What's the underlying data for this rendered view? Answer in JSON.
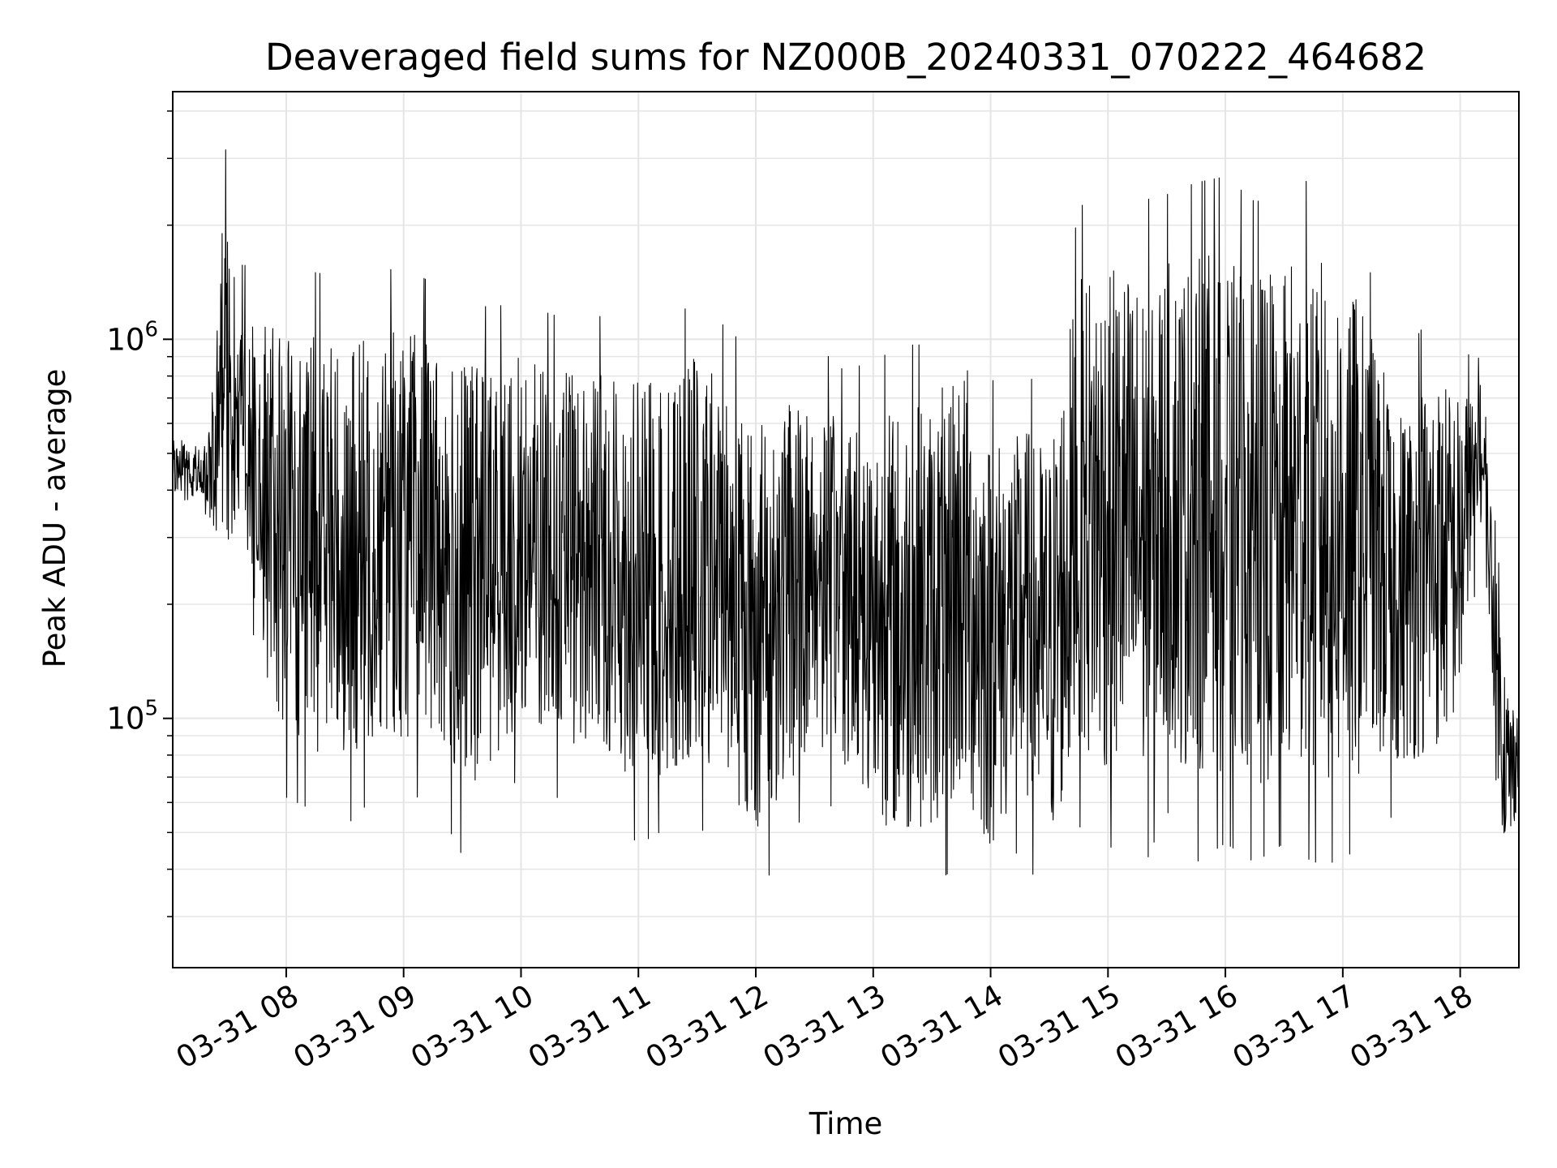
{
  "chart_data": {
    "type": "line",
    "title": "Deaveraged field sums for NZ000B_20240331_070222_464682",
    "xlabel": "Time",
    "ylabel": "Peak ADU - average",
    "yscale": "log",
    "ylim": [
      22000,
      4500000
    ],
    "xlim": [
      "03-31 07:02",
      "03-31 18:30"
    ],
    "grid": true,
    "legend": "none",
    "line_color": "#000000",
    "grid_color": "#e5e5e5",
    "x_ticks": [
      "03-31 08",
      "03-31 09",
      "03-31 10",
      "03-31 11",
      "03-31 12",
      "03-31 13",
      "03-31 14",
      "03-31 15",
      "03-31 16",
      "03-31 17",
      "03-31 18"
    ],
    "y_ticks": [
      {
        "base": "10",
        "exp": "5",
        "value": 100000
      },
      {
        "base": "10",
        "exp": "6",
        "value": 1000000
      }
    ],
    "series": [
      {
        "x": [
          "03-31 07:02",
          "03-31 07:10",
          "03-31 07:17",
          "03-31 07:25",
          "03-31 07:28",
          "03-31 07:35",
          "03-31 07:45",
          "03-31 08:00",
          "03-31 08:15",
          "03-31 08:30",
          "03-31 08:45",
          "03-31 09:00",
          "03-31 09:15",
          "03-31 09:30",
          "03-31 09:45",
          "03-31 10:00",
          "03-31 10:15",
          "03-31 10:30",
          "03-31 10:45",
          "03-31 11:00",
          "03-31 11:15",
          "03-31 11:30",
          "03-31 11:45",
          "03-31 12:00",
          "03-31 12:15",
          "03-31 12:30",
          "03-31 12:45",
          "03-31 13:00",
          "03-31 13:15",
          "03-31 13:30",
          "03-31 13:45",
          "03-31 14:00",
          "03-31 14:15",
          "03-31 14:30",
          "03-31 14:45",
          "03-31 15:00",
          "03-31 15:15",
          "03-31 15:30",
          "03-31 15:45",
          "03-31 16:00",
          "03-31 16:15",
          "03-31 16:30",
          "03-31 16:45",
          "03-31 17:00",
          "03-31 17:15",
          "03-31 17:30",
          "03-31 17:45",
          "03-31 18:00",
          "03-31 18:10",
          "03-31 18:15",
          "03-31 18:20",
          "03-31 18:25",
          "03-31 18:30"
        ],
        "low": [
          380000,
          350000,
          380000,
          240000,
          140000,
          300000,
          100000,
          60000,
          55000,
          50000,
          60000,
          60000,
          60000,
          42000,
          52000,
          70000,
          60000,
          60000,
          55000,
          45000,
          50000,
          50000,
          45000,
          32000,
          45000,
          60000,
          55000,
          40000,
          30000,
          35000,
          40000,
          30000,
          45000,
          30000,
          50000,
          45000,
          35000,
          55000,
          40000,
          45000,
          40000,
          45000,
          40000,
          40000,
          50000,
          55000,
          55000,
          75000,
          300000,
          150000,
          45000,
          35000,
          60000
        ],
        "high": [
          600000,
          550000,
          500000,
          1100000,
          3700000,
          1600000,
          1600000,
          1500000,
          1550000,
          1500000,
          1550000,
          1600000,
          1450000,
          1300000,
          1250000,
          1300000,
          1200000,
          1150000,
          1200000,
          1150000,
          1100000,
          1350000,
          1100000,
          950000,
          1050000,
          1000000,
          850000,
          900000,
          1000000,
          1000000,
          1450000,
          800000,
          850000,
          750000,
          2300000,
          2700000,
          2400000,
          2500000,
          2700000,
          2800000,
          2400000,
          2500000,
          2800000,
          2600000,
          1500000,
          900000,
          1200000,
          950000,
          900000,
          500000,
          250000,
          140000,
          120000
        ]
      }
    ]
  }
}
